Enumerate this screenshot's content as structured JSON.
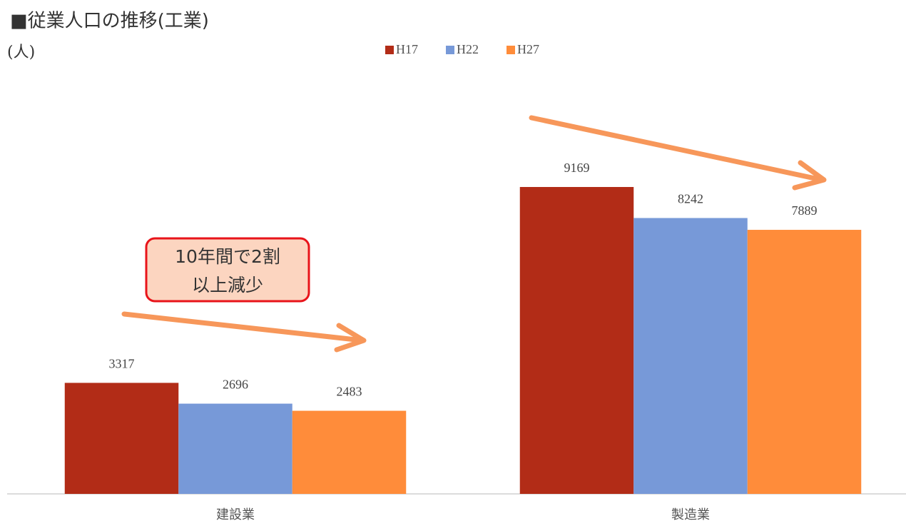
{
  "chart_data": {
    "type": "bar",
    "title": "■従業人口の推移(工業)",
    "y_label": "(人)",
    "categories": [
      "建設業",
      "製造業"
    ],
    "series": [
      {
        "name": "H17",
        "color": "#b22c17",
        "values": [
          3317,
          9169
        ]
      },
      {
        "name": "H22",
        "color": "#7799d8",
        "values": [
          2696,
          8242
        ]
      },
      {
        "name": "H27",
        "color": "#ff8c3a",
        "values": [
          2483,
          7889
        ]
      }
    ],
    "annotation": [
      "10年間で2割",
      "以上減少"
    ]
  }
}
